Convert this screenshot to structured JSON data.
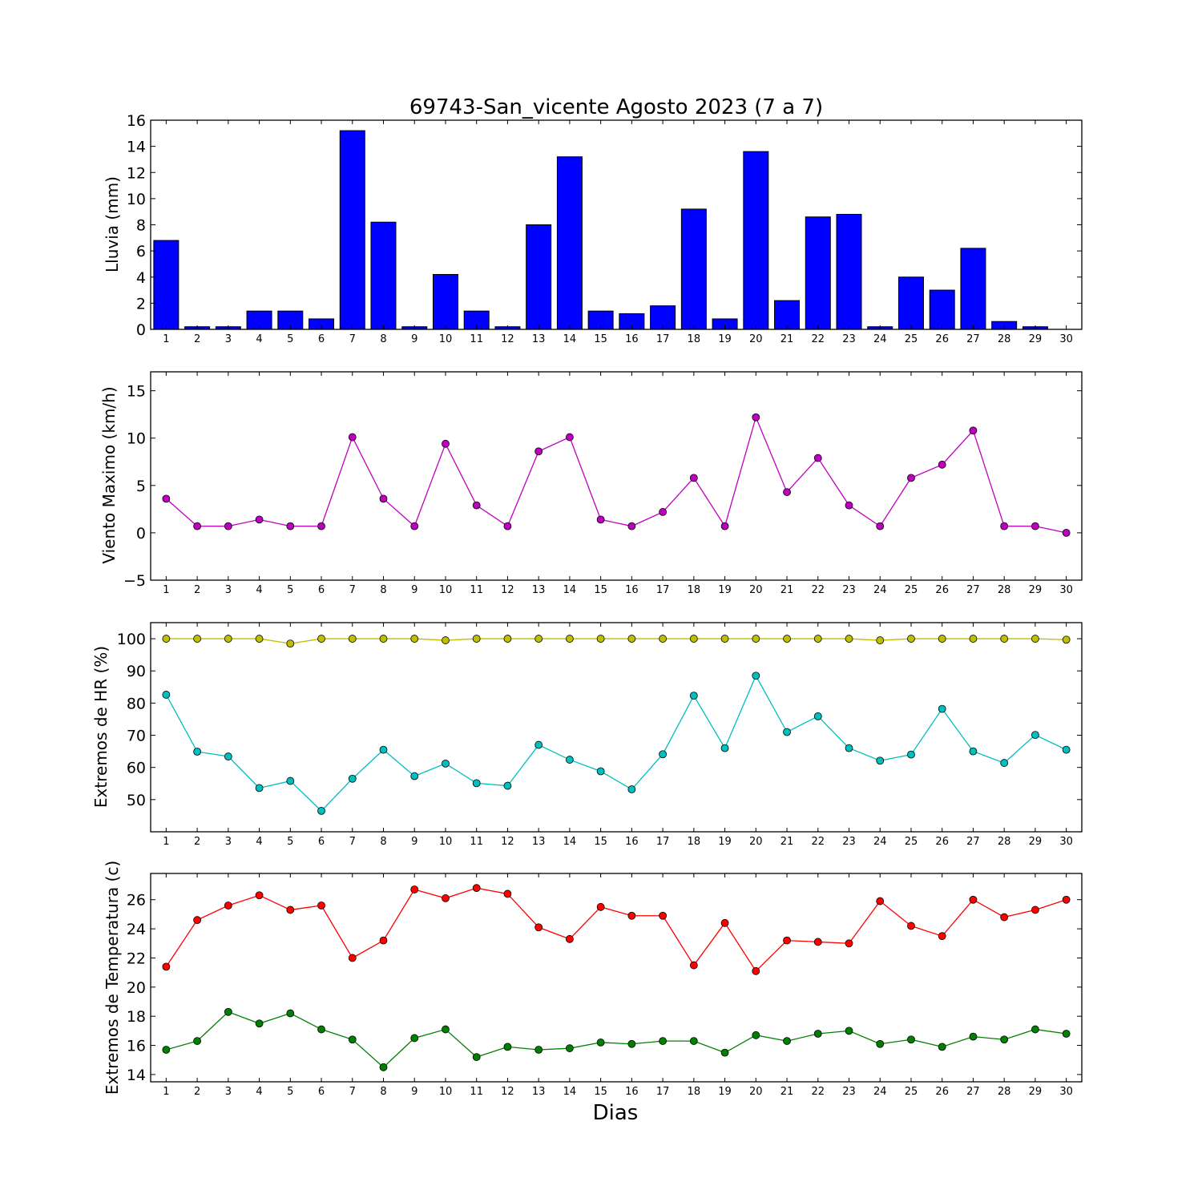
{
  "title": "69743-San_vicente Agosto 2023  (7 a 7)",
  "xlabel": "Dias",
  "chart_data": [
    {
      "type": "bar",
      "ylabel": "Lluvia (mm)",
      "ylim": [
        0,
        16
      ],
      "yticks": [
        0,
        2,
        4,
        6,
        8,
        10,
        12,
        14,
        16
      ],
      "ytick_labels": [
        "0",
        "2",
        "4",
        "6",
        "8",
        "10",
        "12",
        "14",
        "16"
      ],
      "categories": [
        "1",
        "2",
        "3",
        "4",
        "5",
        "6",
        "7",
        "8",
        "9",
        "10",
        "11",
        "12",
        "13",
        "14",
        "15",
        "16",
        "17",
        "18",
        "19",
        "20",
        "21",
        "22",
        "23",
        "24",
        "25",
        "26",
        "27",
        "28",
        "29",
        "30"
      ],
      "xlim": [
        0.5,
        30.5
      ],
      "series": [
        {
          "color": "#0000ff",
          "values": [
            6.8,
            0.2,
            0.2,
            1.4,
            1.4,
            0.8,
            15.2,
            8.2,
            0.2,
            4.2,
            1.4,
            0.2,
            8.0,
            13.2,
            1.4,
            1.2,
            1.8,
            9.2,
            0.8,
            13.6,
            2.2,
            8.6,
            8.8,
            0.2,
            4.0,
            3.0,
            6.2,
            0.6,
            0.2,
            0.0
          ]
        }
      ]
    },
    {
      "type": "line",
      "ylabel": "Viento Maximo (km/h)",
      "ylim": [
        -5,
        17
      ],
      "yticks": [
        -5,
        0,
        5,
        10,
        15
      ],
      "ytick_labels": [
        "−5",
        "0",
        "5",
        "10",
        "15"
      ],
      "categories": [
        "1",
        "2",
        "3",
        "4",
        "5",
        "6",
        "7",
        "8",
        "9",
        "10",
        "11",
        "12",
        "13",
        "14",
        "15",
        "16",
        "17",
        "18",
        "19",
        "20",
        "21",
        "22",
        "23",
        "24",
        "25",
        "26",
        "27",
        "28",
        "29",
        "30"
      ],
      "xlim": [
        0.5,
        30.5
      ],
      "series": [
        {
          "color": "#bf00bf",
          "values": [
            3.6,
            0.7,
            0.7,
            1.4,
            0.7,
            0.7,
            10.1,
            3.6,
            0.7,
            9.4,
            2.9,
            0.7,
            8.6,
            10.1,
            1.4,
            0.7,
            2.2,
            5.8,
            0.7,
            12.2,
            4.3,
            7.9,
            2.9,
            0.7,
            5.8,
            7.2,
            10.8,
            0.7,
            0.7,
            0.0
          ]
        }
      ]
    },
    {
      "type": "line",
      "ylabel": "Extremos de HR (%)",
      "ylim": [
        40,
        105
      ],
      "yticks": [
        50,
        60,
        70,
        80,
        90,
        100
      ],
      "ytick_labels": [
        "50",
        "60",
        "70",
        "80",
        "90",
        "100"
      ],
      "categories": [
        "1",
        "2",
        "3",
        "4",
        "5",
        "6",
        "7",
        "8",
        "9",
        "10",
        "11",
        "12",
        "13",
        "14",
        "15",
        "16",
        "17",
        "18",
        "19",
        "20",
        "21",
        "22",
        "23",
        "24",
        "25",
        "26",
        "27",
        "28",
        "29",
        "30"
      ],
      "xlim": [
        0.5,
        30.5
      ],
      "series": [
        {
          "color": "#bfbf00",
          "values": [
            100,
            100,
            100,
            100,
            98.5,
            100,
            100,
            100,
            100,
            99.5,
            100,
            100,
            100,
            100,
            100,
            100,
            100,
            100,
            100,
            100,
            100,
            100,
            100,
            99.5,
            100,
            100,
            100,
            100,
            100,
            99.7
          ]
        },
        {
          "color": "#00bfbf",
          "values": [
            82.6,
            64.9,
            63.4,
            53.6,
            55.8,
            46.5,
            56.5,
            65.5,
            57.3,
            61.2,
            55.1,
            54.3,
            67.0,
            62.4,
            58.8,
            53.2,
            64.1,
            82.3,
            66.0,
            88.5,
            71.0,
            75.9,
            66.0,
            62.1,
            64.0,
            78.2,
            65.0,
            61.4,
            70.1,
            65.5
          ]
        }
      ]
    },
    {
      "type": "line",
      "ylabel": "Extremos de Temperatura (c)",
      "ylim": [
        13.5,
        27.8
      ],
      "yticks": [
        14,
        16,
        18,
        20,
        22,
        24,
        26
      ],
      "ytick_labels": [
        "14",
        "16",
        "18",
        "20",
        "22",
        "24",
        "26"
      ],
      "categories": [
        "1",
        "2",
        "3",
        "4",
        "5",
        "6",
        "7",
        "8",
        "9",
        "10",
        "11",
        "12",
        "13",
        "14",
        "15",
        "16",
        "17",
        "18",
        "19",
        "20",
        "21",
        "22",
        "23",
        "24",
        "25",
        "26",
        "27",
        "28",
        "29",
        "30"
      ],
      "xlim": [
        0.5,
        30.5
      ],
      "series": [
        {
          "color": "#ff0000",
          "values": [
            21.4,
            24.6,
            25.6,
            26.3,
            25.3,
            25.6,
            22.0,
            23.2,
            26.7,
            26.1,
            26.8,
            26.4,
            24.1,
            23.3,
            25.5,
            24.9,
            24.9,
            21.5,
            24.4,
            21.1,
            23.2,
            23.1,
            23.0,
            25.9,
            24.2,
            23.5,
            26.0,
            24.8,
            25.3,
            26.0
          ]
        },
        {
          "color": "#008000",
          "values": [
            15.7,
            16.3,
            18.3,
            17.5,
            18.2,
            17.1,
            16.4,
            14.5,
            16.5,
            17.1,
            15.2,
            15.9,
            15.7,
            15.8,
            16.2,
            16.1,
            16.3,
            16.3,
            15.5,
            16.7,
            16.3,
            16.8,
            17.0,
            16.1,
            16.4,
            15.9,
            16.6,
            16.4,
            17.1,
            16.8
          ]
        }
      ]
    }
  ]
}
